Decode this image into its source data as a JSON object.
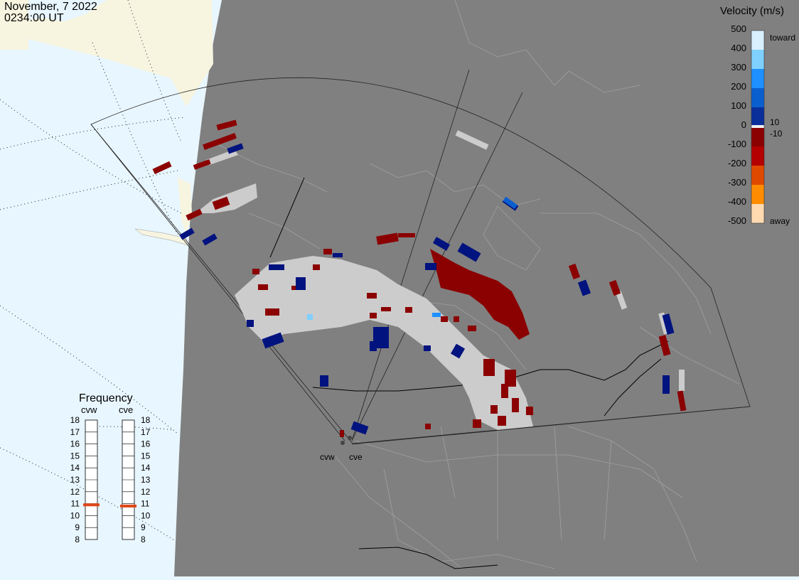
{
  "header": {
    "date": "November, 7 2022",
    "time": "0234:00 UT"
  },
  "colorbar": {
    "title": "Velocity (m/s)",
    "ticks": [
      "500",
      "400",
      "300",
      "200",
      "100",
      "0",
      "-100",
      "-200",
      "-300",
      "-400",
      "-500"
    ],
    "label_pos_small": "10",
    "label_neg_small": "-10",
    "toward_label": "toward",
    "away_label": "away",
    "colors": [
      "#d8f0ff",
      "#7fd0ff",
      "#1e90ff",
      "#0a5fcf",
      "#0a2f9a",
      "#f2f2f2",
      "#8b0000",
      "#b40000",
      "#e04a00",
      "#ff8c00",
      "#ffd9b0"
    ]
  },
  "frequency": {
    "title": "Frequency",
    "radars": [
      "cvw",
      "cve"
    ],
    "scale": [
      "18",
      "17",
      "16",
      "15",
      "14",
      "13",
      "12",
      "11",
      "10",
      "9",
      "8"
    ],
    "cvw_value": 10.9,
    "cve_value": 10.8,
    "marker_color": "#e0481a"
  },
  "sites": [
    {
      "name": "cvw"
    },
    {
      "name": "cve"
    }
  ],
  "colors": {
    "land": "#808080",
    "ocean": "#e8f6ff",
    "grid_fill": "#cccccc",
    "red": "#8b0000",
    "blue": "#00137f"
  }
}
